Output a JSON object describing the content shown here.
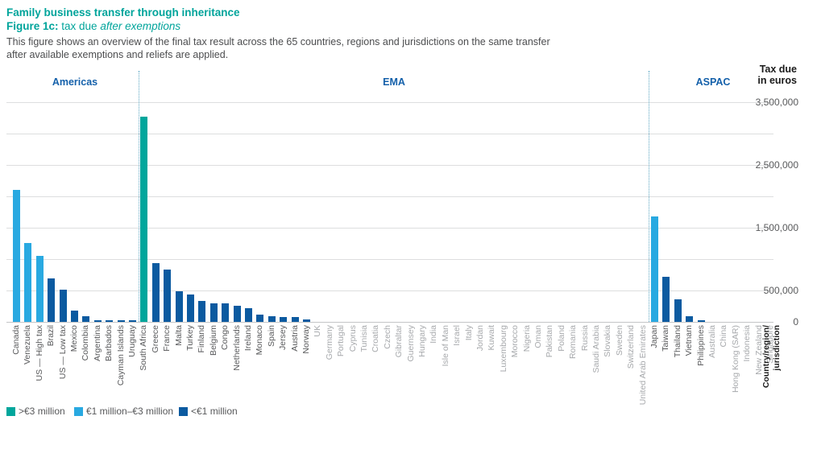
{
  "header": {
    "title": "Family business transfer through inheritance",
    "figure_label": "Figure 1c:",
    "figure_caption": " tax due ",
    "figure_caption_italic": "after exemptions",
    "description_line1": "This figure shows an overview of the final tax result across the 65 countries, regions and jurisdictions on the same transfer",
    "description_line2": "after available exemptions and reliefs are applied."
  },
  "axis": {
    "y_title_line1": "Tax due",
    "y_title_line2": "in euros",
    "x_title_line1": "Country/region/",
    "x_title_line2": "jurisdiction",
    "tick_values": [
      3500000,
      2500000,
      1500000,
      500000,
      0
    ],
    "tick_labels": [
      "3,500,000",
      "2,500,000",
      "1,500,000",
      "500,000",
      "0"
    ]
  },
  "legend": [
    {
      "label": ">€3 million",
      "color": "#00A69C"
    },
    {
      "label": "€1 million–€3 million",
      "color": "#29A9E1"
    },
    {
      "label": "<€1 million",
      "color": "#0B5AA0"
    }
  ],
  "chart_data": {
    "type": "bar",
    "title": "Figure 1c: tax due after exemptions",
    "xlabel": "Country/region/jurisdiction",
    "ylabel": "Tax due in euros",
    "ylim": [
      0,
      3500000
    ],
    "gridline_step": 500000,
    "grid": true,
    "legend_position": "bottom-left",
    "colors": {
      "teal": "#00A69C",
      "light_blue": "#29A9E1",
      "dark_blue": "#0B5AA0"
    },
    "color_rule": {
      "teal": ">3000000",
      "light_blue": "1000000-3000000",
      "dark_blue": "<1000000"
    },
    "regions": [
      {
        "name": "Americas",
        "countries": [
          {
            "name": "Canada",
            "value": 2100000
          },
          {
            "name": "Venezuela",
            "value": 1260000
          },
          {
            "name": "US — High tax",
            "value": 1050000
          },
          {
            "name": "Brazil",
            "value": 690000
          },
          {
            "name": "US — Low tax",
            "value": 510000
          },
          {
            "name": "Mexico",
            "value": 180000
          },
          {
            "name": "Colombia",
            "value": 90000
          },
          {
            "name": "Argentina",
            "value": 20000
          },
          {
            "name": "Barbados",
            "value": 20000
          },
          {
            "name": "Cayman Islands",
            "value": 20000
          },
          {
            "name": "Uruguay",
            "value": 20000
          }
        ]
      },
      {
        "name": "EMA",
        "countries": [
          {
            "name": "South Africa",
            "value": 3270000
          },
          {
            "name": "Greece",
            "value": 940000
          },
          {
            "name": "France",
            "value": 830000
          },
          {
            "name": "Malta",
            "value": 490000
          },
          {
            "name": "Turkey",
            "value": 435000
          },
          {
            "name": "Finland",
            "value": 330000
          },
          {
            "name": "Belgium",
            "value": 295000
          },
          {
            "name": "Congo",
            "value": 290000
          },
          {
            "name": "Netherlands",
            "value": 255000
          },
          {
            "name": "Ireland",
            "value": 215000
          },
          {
            "name": "Monaco",
            "value": 115000
          },
          {
            "name": "Spain",
            "value": 95000
          },
          {
            "name": "Jersey",
            "value": 77000
          },
          {
            "name": "Austria",
            "value": 77000
          },
          {
            "name": "Norway",
            "value": 44000
          },
          {
            "name": "UK",
            "value": 0
          },
          {
            "name": "Germany",
            "value": 0
          },
          {
            "name": "Portugal",
            "value": 0
          },
          {
            "name": "Cyprus",
            "value": 0
          },
          {
            "name": "Tunisia",
            "value": 0
          },
          {
            "name": "Croatia",
            "value": 0
          },
          {
            "name": "Czech",
            "value": 0
          },
          {
            "name": "Gibraltar",
            "value": 0
          },
          {
            "name": "Guernsey",
            "value": 0
          },
          {
            "name": "Hungary",
            "value": 0
          },
          {
            "name": "India",
            "value": 0
          },
          {
            "name": "Isle of Man",
            "value": 0
          },
          {
            "name": "Israel",
            "value": 0
          },
          {
            "name": "Italy",
            "value": 0
          },
          {
            "name": "Jordan",
            "value": 0
          },
          {
            "name": "Kuwait",
            "value": 0
          },
          {
            "name": "Luxembourg",
            "value": 0
          },
          {
            "name": "Morocco",
            "value": 0
          },
          {
            "name": "Nigeria",
            "value": 0
          },
          {
            "name": "Oman",
            "value": 0
          },
          {
            "name": "Pakistan",
            "value": 0
          },
          {
            "name": "Poland",
            "value": 0
          },
          {
            "name": "Romania",
            "value": 0
          },
          {
            "name": "Russia",
            "value": 0
          },
          {
            "name": "Saudi Arabia",
            "value": 0
          },
          {
            "name": "Slovakia",
            "value": 0
          },
          {
            "name": "Sweden",
            "value": 0
          },
          {
            "name": "Switzerland",
            "value": 0
          },
          {
            "name": "United Arab Emirates",
            "value": 0
          }
        ]
      },
      {
        "name": "ASPAC",
        "countries": [
          {
            "name": "Japan",
            "value": 1680000
          },
          {
            "name": "Taiwan",
            "value": 720000
          },
          {
            "name": "Thailand",
            "value": 360000
          },
          {
            "name": "Vietnam",
            "value": 90000
          },
          {
            "name": "Philippines",
            "value": 30000
          },
          {
            "name": "Australia",
            "value": 0
          },
          {
            "name": "China",
            "value": 0
          },
          {
            "name": "Hong Kong (SAR)",
            "value": 0
          },
          {
            "name": "Indonesia",
            "value": 0
          },
          {
            "name": "New Zealand",
            "value": 0
          },
          {
            "name": "Singapore",
            "value": 0
          }
        ]
      }
    ]
  }
}
